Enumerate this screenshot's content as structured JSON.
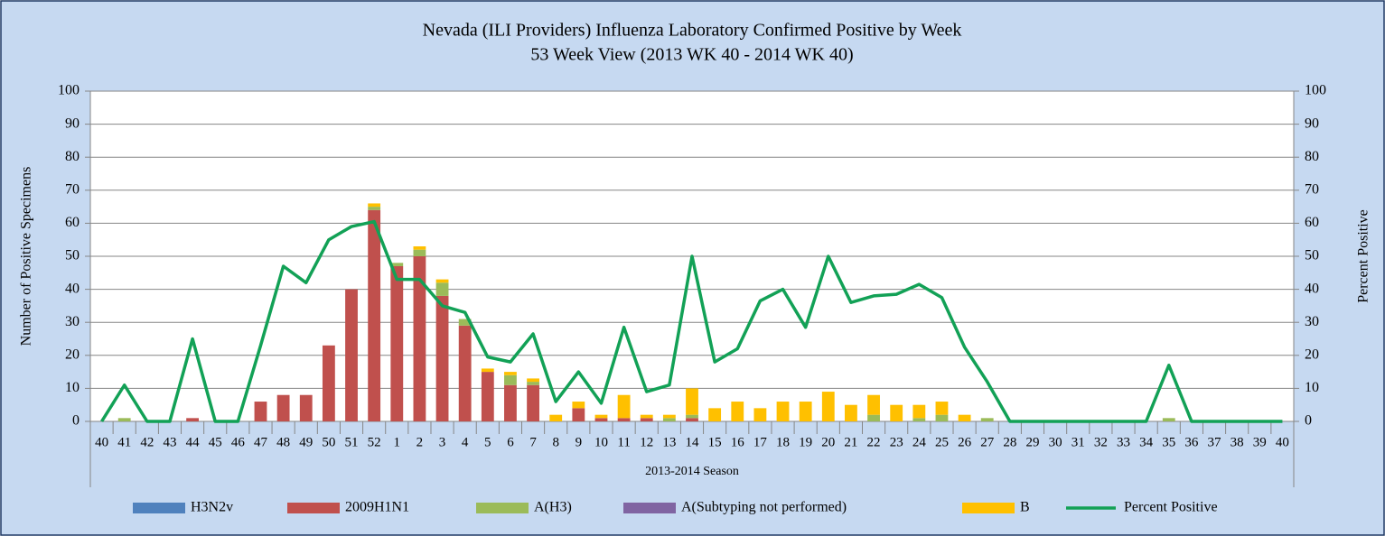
{
  "chart_data": {
    "type": "bar",
    "stacked": true,
    "title": "Nevada (ILI Providers) Influenza Laboratory Confirmed Positive by Week",
    "subtitle": "53 Week View (2013 WK 40 - 2014 WK 40)",
    "x_label": "2013-2014 Season",
    "y_label": "Number of Positive Specimens",
    "y2_label": "Percent Positive",
    "categories": [
      "40",
      "41",
      "42",
      "43",
      "44",
      "45",
      "46",
      "47",
      "48",
      "49",
      "50",
      "51",
      "52",
      "1",
      "2",
      "3",
      "4",
      "5",
      "6",
      "7",
      "8",
      "9",
      "10",
      "11",
      "12",
      "13",
      "14",
      "15",
      "16",
      "17",
      "18",
      "19",
      "20",
      "21",
      "22",
      "23",
      "24",
      "25",
      "26",
      "27",
      "28",
      "29",
      "30",
      "31",
      "32",
      "33",
      "34",
      "35",
      "36",
      "37",
      "38",
      "39",
      "40"
    ],
    "ylim": [
      0,
      100
    ],
    "yticks": [
      0,
      10,
      20,
      30,
      40,
      50,
      60,
      70,
      80,
      90,
      100
    ],
    "y2lim": [
      0,
      100
    ],
    "y2ticks": [
      0,
      10,
      20,
      30,
      40,
      50,
      60,
      70,
      80,
      90,
      100
    ],
    "grid": true,
    "legend": "bottom",
    "series": [
      {
        "name": "H3N2v",
        "color": "#4f81bd",
        "values": [
          0,
          0,
          0,
          0,
          0,
          0,
          0,
          0,
          0,
          0,
          0,
          0,
          0,
          0,
          0,
          0,
          0,
          0,
          0,
          0,
          0,
          0,
          0,
          0,
          0,
          0,
          0,
          0,
          0,
          0,
          0,
          0,
          0,
          0,
          0,
          0,
          0,
          0,
          0,
          0,
          0,
          0,
          0,
          0,
          0,
          0,
          0,
          0,
          0,
          0,
          0,
          0,
          0
        ]
      },
      {
        "name": "2009H1N1",
        "color": "#c0504d",
        "values": [
          0,
          0,
          0,
          0,
          1,
          0,
          0,
          6,
          8,
          8,
          23,
          40,
          64,
          47,
          50,
          38,
          29,
          15,
          11,
          11,
          0,
          4,
          1,
          1,
          1,
          0,
          1,
          0,
          0,
          0,
          0,
          0,
          0,
          0,
          0,
          0,
          0,
          0,
          0,
          0,
          0,
          0,
          0,
          0,
          0,
          0,
          0,
          0,
          0,
          0,
          0,
          0,
          0
        ]
      },
      {
        "name": "A(H3)",
        "color": "#9bbb59",
        "values": [
          0,
          1,
          0,
          0,
          0,
          0,
          0,
          0,
          0,
          0,
          0,
          0,
          1,
          1,
          2,
          4,
          2,
          0,
          3,
          1,
          0,
          0,
          0,
          0,
          0,
          1,
          1,
          0,
          0,
          0,
          0,
          0,
          0,
          0,
          2,
          0,
          1,
          2,
          0,
          1,
          0,
          0,
          0,
          0,
          0,
          0,
          0,
          1,
          0,
          0,
          0,
          0,
          0
        ]
      },
      {
        "name": "A(Subtyping not performed)",
        "color": "#8064a2",
        "values": [
          0,
          0,
          0,
          0,
          0,
          0,
          0,
          0,
          0,
          0,
          0,
          0,
          0,
          0,
          0,
          0,
          0,
          0,
          0,
          0,
          0,
          0,
          0,
          0,
          0,
          0,
          0,
          0,
          0,
          0,
          0,
          0,
          0,
          0,
          0,
          0,
          0,
          0,
          0,
          0,
          0,
          0,
          0,
          0,
          0,
          0,
          0,
          0,
          0,
          0,
          0,
          0,
          0
        ]
      },
      {
        "name": "B",
        "color": "#ffc000",
        "values": [
          0,
          0,
          0,
          0,
          0,
          0,
          0,
          0,
          0,
          0,
          0,
          0,
          1,
          0,
          1,
          1,
          0,
          1,
          1,
          1,
          2,
          2,
          1,
          7,
          1,
          1,
          8,
          4,
          6,
          4,
          6,
          6,
          9,
          5,
          6,
          5,
          4,
          4,
          2,
          0,
          0,
          0,
          0,
          0,
          0,
          0,
          0,
          0,
          0,
          0,
          0,
          0,
          0
        ]
      },
      {
        "name": "Percent Positive",
        "type": "line",
        "axis": "y2",
        "color": "#12a156",
        "values": [
          0,
          11,
          0,
          0,
          25,
          0,
          0,
          23,
          47,
          42,
          55,
          59,
          60.5,
          43,
          43,
          35,
          33,
          19.5,
          18,
          26.5,
          6,
          15,
          5.5,
          28.5,
          9,
          11,
          50,
          18,
          22,
          36.5,
          40,
          28.5,
          50,
          36,
          38,
          38.5,
          41.5,
          37.5,
          22.5,
          12,
          0,
          0,
          0,
          0,
          0,
          0,
          0,
          17,
          0,
          0,
          0,
          0,
          0
        ]
      }
    ]
  }
}
